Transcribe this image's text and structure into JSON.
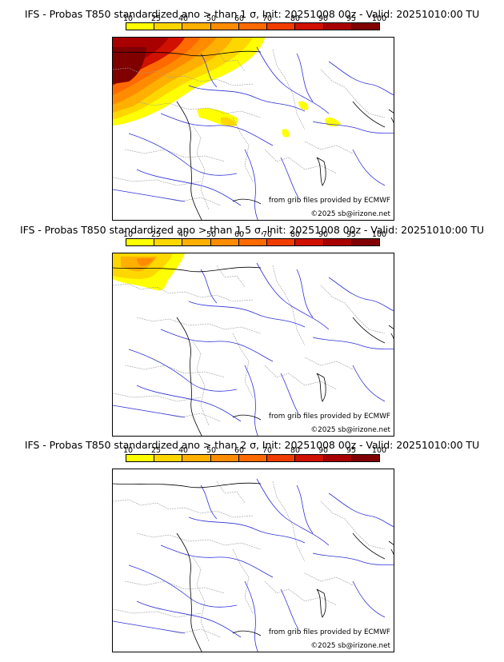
{
  "panels": [
    {
      "title": "IFS - Probas T850  standardized ano > than 1 σ, Init: 20251008 00z - Valid: 20251010:00 TU",
      "threshold": "1 σ",
      "extent": "large",
      "source_credit": "from grib files provided by ECMWF",
      "copyright": "©2025 sb@irizone.net"
    },
    {
      "title": "IFS - Probas T850  standardized ano > than 1.5 σ, Init: 20251008 00z - Valid: 20251010:00 TU",
      "threshold": "1.5 σ",
      "extent": "small",
      "source_credit": "from grib files provided by ECMWF",
      "copyright": "©2025 sb@irizone.net"
    },
    {
      "title": "IFS - Probas T850  standardized ano > than 2 σ, Init: 20251008 00z - Valid: 20251010:00 TU",
      "threshold": "2 σ",
      "extent": "none",
      "source_credit": "from grib files provided by ECMWF",
      "copyright": "©2025 sb@irizone.net"
    }
  ],
  "colorbar": {
    "ticks": [
      "10",
      "25",
      "40",
      "50",
      "60",
      "70",
      "80",
      "90",
      "95",
      "100"
    ],
    "colors": [
      "#ffff00",
      "#ffd700",
      "#ffb000",
      "#ff8c00",
      "#ff6a00",
      "#f03c00",
      "#d01000",
      "#a80000",
      "#800000"
    ]
  },
  "map_colors": {
    "rivers": "#3030d8",
    "borders": "#9a9a9a",
    "coast": "#000000"
  }
}
